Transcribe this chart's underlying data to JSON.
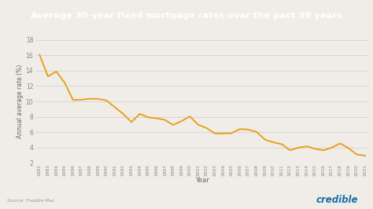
{
  "title": "Average 30-year fixed mortgage rates over the past 39 years",
  "title_bg_color": "#1a4a52",
  "title_text_color": "#ffffff",
  "line_color": "#e8a020",
  "bg_color": "#f0ede8",
  "plot_bg_color": "#f0ede8",
  "xlabel": "Year",
  "ylabel": "Annual average rate (%)",
  "source_text": "Source: Freddie Mac",
  "credible_text": "credible",
  "credible_color": "#1a6fa8",
  "years": [
    1982,
    1983,
    1984,
    1985,
    1986,
    1987,
    1988,
    1989,
    1990,
    1991,
    1992,
    1993,
    1994,
    1995,
    1996,
    1997,
    1998,
    1999,
    2000,
    2001,
    2002,
    2003,
    2004,
    2005,
    2006,
    2007,
    2008,
    2009,
    2010,
    2011,
    2012,
    2013,
    2014,
    2015,
    2016,
    2017,
    2018,
    2019,
    2020,
    2021
  ],
  "rates": [
    16.04,
    13.24,
    13.88,
    12.43,
    10.19,
    10.21,
    10.34,
    10.32,
    10.13,
    9.25,
    8.39,
    7.31,
    8.38,
    7.93,
    7.81,
    7.6,
    6.94,
    7.44,
    8.05,
    6.97,
    6.54,
    5.83,
    5.84,
    5.87,
    6.41,
    6.34,
    6.03,
    5.04,
    4.69,
    4.45,
    3.66,
    3.98,
    4.17,
    3.85,
    3.65,
    3.99,
    4.54,
    3.94,
    3.11,
    2.96
  ],
  "ylim": [
    2,
    18
  ],
  "yticks": [
    2,
    4,
    6,
    8,
    10,
    12,
    14,
    16,
    18
  ],
  "grid_color": "#cccccc",
  "line_width": 1.4,
  "tick_label_color": "#888888",
  "axis_label_color": "#666666"
}
